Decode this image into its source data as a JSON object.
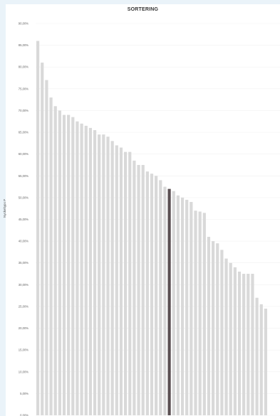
{
  "chart_data": {
    "type": "bar",
    "title": "SORTERING",
    "xlabel": "",
    "ylabel": "Nyckeltypo P",
    "ylim": [
      0,
      90
    ],
    "y_ticks": [
      "0,00%",
      "5,00%",
      "10,00%",
      "15,00%",
      "20,00%",
      "25,00%",
      "30,00%",
      "35,00%",
      "40,00%",
      "45,00%",
      "50,00%",
      "55,00%",
      "60,00%",
      "65,00%",
      "70,00%",
      "75,00%",
      "80,00%",
      "85,00%",
      "90,00%"
    ],
    "grid": true,
    "bar_color": "#d9d9d9",
    "highlight_color": "#5a4f52",
    "highlight_index": 30,
    "values": [
      86.0,
      81.0,
      77.0,
      73.0,
      71.0,
      70.0,
      69.0,
      69.0,
      68.5,
      67.5,
      67.0,
      66.5,
      66.0,
      65.5,
      64.5,
      64.5,
      64.0,
      63.0,
      62.0,
      61.5,
      60.5,
      60.5,
      58.5,
      57.5,
      57.5,
      56.0,
      55.5,
      55.0,
      54.0,
      52.5,
      52.0,
      51.5,
      50.5,
      50.0,
      49.5,
      49.0,
      47.0,
      46.8,
      46.5,
      41.0,
      40.0,
      39.5,
      38.0,
      36.0,
      35.0,
      34.0,
      33.0,
      32.5,
      32.5,
      32.5,
      27.0,
      25.5,
      24.5
    ]
  }
}
